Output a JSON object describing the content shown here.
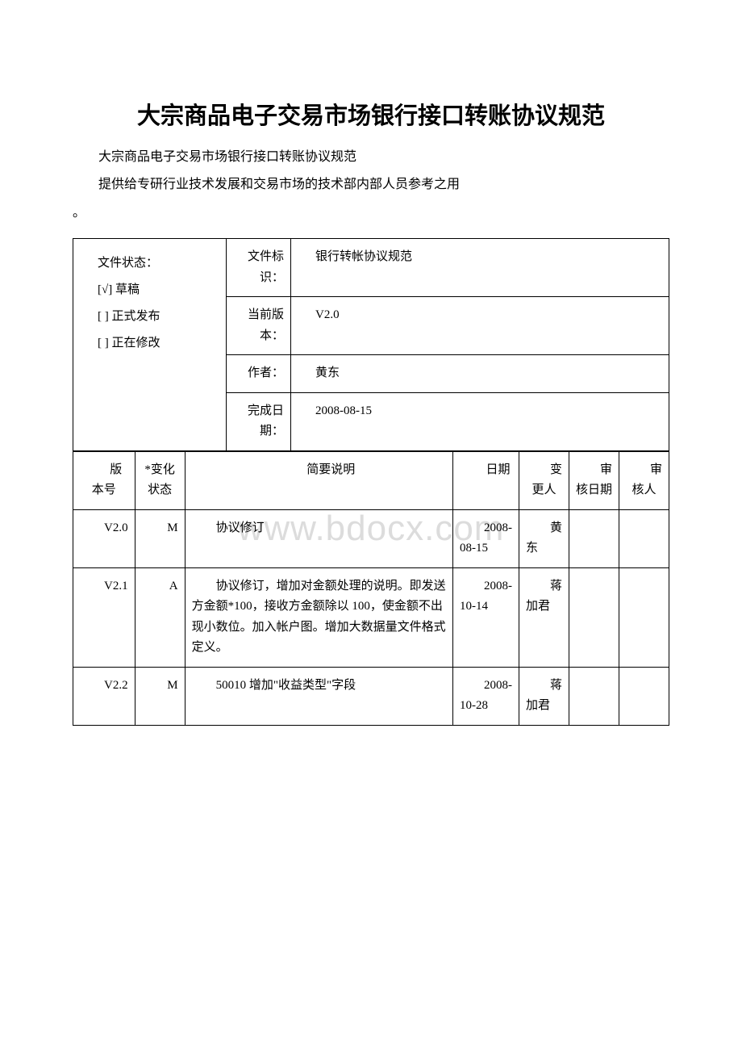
{
  "title": "大宗商品电子交易市场银行接口转账协议规范",
  "intro_line1": "大宗商品电子交易市场银行接口转账协议规范",
  "intro_line2": "提供给专研行业技术发展和交易市场的技术部内部人员参考之用",
  "intro_line3": "。",
  "watermark": "www.bdocx.com",
  "meta": {
    "status_header": "文件状态：",
    "status_opt1": "[√] 草稿",
    "status_opt2": "[  ] 正式发布",
    "status_opt3": "[  ] 正在修改",
    "row1_label": "文件标识：",
    "row1_value": "银行转帐协议规范",
    "row2_label": "当前版本：",
    "row2_value": "V2.0",
    "row3_label": "作者：",
    "row3_value": "黄东",
    "row4_label": "完成日期：",
    "row4_value": "2008-08-15"
  },
  "history": {
    "headers": {
      "version": "版本号",
      "state": "*变化状态",
      "desc": "简要说明",
      "date": "日期",
      "who": "变更人",
      "review_date": "审核日期",
      "reviewer": "审核人"
    },
    "rows": [
      {
        "version": "V2.0",
        "state": "M",
        "desc": "协议修订",
        "date": "2008-08-15",
        "who": "黄东",
        "review_date": "",
        "reviewer": ""
      },
      {
        "version": "V2.1",
        "state": "A",
        "desc": "协议修订，增加对金额处理的说明。即发送方金额*100，接收方金额除以 100，使金额不出现小数位。加入帐户图。增加大数据量文件格式定义。",
        "date": "2008-10-14",
        "who": "蒋加君",
        "review_date": "",
        "reviewer": ""
      },
      {
        "version": "V2.2",
        "state": "M",
        "desc": "50010 增加\"收益类型\"字段",
        "date": "2008-10-28",
        "who": "蒋加君",
        "review_date": "",
        "reviewer": ""
      }
    ]
  }
}
